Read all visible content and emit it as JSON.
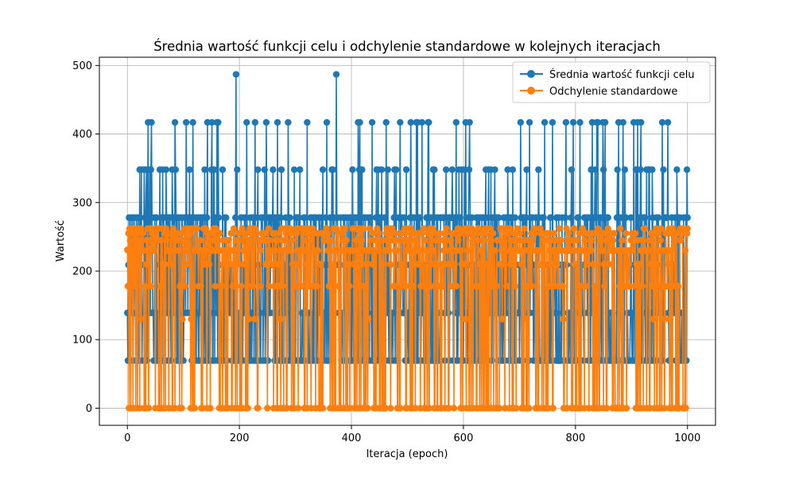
{
  "chart_data": {
    "type": "line",
    "title": "Średnia wartość funkcji celu i odchylenie standardowe w kolejnych iteracjach",
    "xlabel": "Iteracja (epoch)",
    "ylabel": "Wartość",
    "xlim": [
      -50,
      1050
    ],
    "ylim": [
      -25,
      512
    ],
    "xticks": [
      0,
      200,
      400,
      600,
      800,
      1000
    ],
    "xtick_labels": [
      "0",
      "200",
      "400",
      "600",
      "800",
      "1000"
    ],
    "yticks": [
      0,
      100,
      200,
      300,
      400,
      500
    ],
    "ytick_labels": [
      "0",
      "100",
      "200",
      "300",
      "400",
      "500"
    ],
    "grid": true,
    "legend_position": "top-right",
    "x": {
      "start": 0,
      "end": 1000,
      "step": 1
    },
    "series": [
      {
        "name": "Średnia wartość funkcji celu",
        "color": "#1f77b4",
        "marker": "circle",
        "discrete_levels": [
          69.5,
          139,
          209,
          278,
          348,
          417,
          487
        ],
        "values_sample": [
          139,
          69.5,
          209,
          278,
          139,
          69.5,
          278,
          209,
          139,
          278,
          69.5,
          139,
          278,
          209,
          139,
          69.5,
          278,
          139,
          209,
          278
        ],
        "peaks": [
          {
            "x": 22,
            "y": 348
          },
          {
            "x": 30,
            "y": 348
          },
          {
            "x": 37,
            "y": 417
          },
          {
            "x": 80,
            "y": 348
          },
          {
            "x": 85,
            "y": 417
          },
          {
            "x": 105,
            "y": 417
          },
          {
            "x": 117,
            "y": 417
          },
          {
            "x": 160,
            "y": 417
          },
          {
            "x": 194,
            "y": 487
          },
          {
            "x": 213,
            "y": 417
          },
          {
            "x": 268,
            "y": 417
          },
          {
            "x": 287,
            "y": 417
          },
          {
            "x": 321,
            "y": 417
          },
          {
            "x": 373,
            "y": 487
          },
          {
            "x": 415,
            "y": 417
          },
          {
            "x": 437,
            "y": 417
          },
          {
            "x": 538,
            "y": 417
          },
          {
            "x": 718,
            "y": 417
          },
          {
            "x": 796,
            "y": 417
          },
          {
            "x": 853,
            "y": 417
          },
          {
            "x": 877,
            "y": 417
          },
          {
            "x": 904,
            "y": 417
          },
          {
            "x": 955,
            "y": 417
          }
        ]
      },
      {
        "name": "Odchylenie standardowe",
        "color": "#ff7f0e",
        "marker": "circle",
        "discrete_levels": [
          0,
          130,
          178,
          210,
          230,
          245,
          255,
          262
        ],
        "values_sample": [
          231,
          178,
          255,
          0,
          262,
          245,
          0,
          231,
          255,
          210,
          0,
          262,
          178,
          245,
          255,
          0,
          231,
          262,
          0,
          255
        ],
        "end_values": [
          255,
          262
        ]
      }
    ]
  }
}
